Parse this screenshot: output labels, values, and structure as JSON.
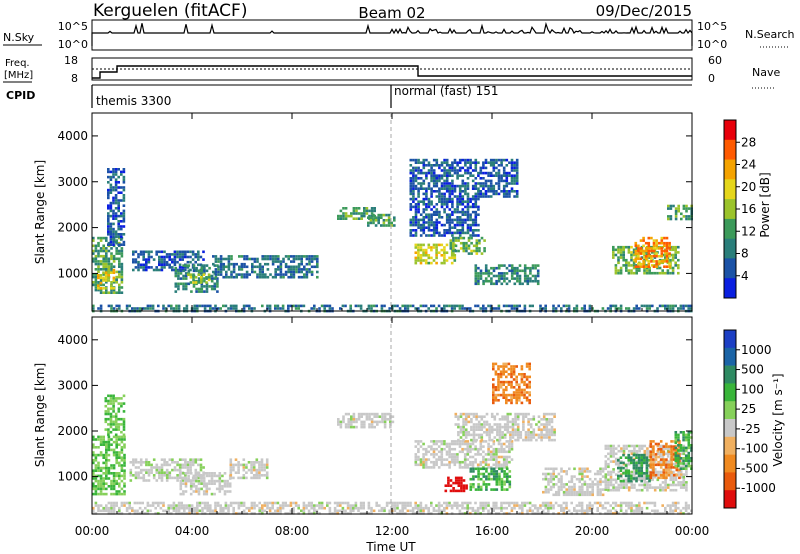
{
  "header": {
    "station": "Kerguelen (fitACF)",
    "beam": "Beam 02",
    "date": "09/Dec/2015"
  },
  "status_panels": {
    "nsky": {
      "label": "N.Sky",
      "ticks": [
        "10^5",
        "10^0"
      ]
    },
    "nsearch": {
      "label": "N.Search",
      "ticks": [
        "10^5",
        "10^0"
      ]
    },
    "freq": {
      "label_line1": "Freq.",
      "label_line2": "[MHz]",
      "ticks": [
        "18",
        "8"
      ]
    },
    "nave": {
      "label": "Nave",
      "ticks": [
        "60",
        "0"
      ]
    },
    "cpid": {
      "label": "CPID",
      "segments": [
        {
          "name": "themis 3300",
          "start_hour": 0,
          "end_hour": 12
        },
        {
          "name": "normal (fast) 151",
          "start_hour": 12,
          "end_hour": 24
        }
      ]
    }
  },
  "chart_data": [
    {
      "type": "heatmap",
      "panel": "power",
      "x": {
        "label": "",
        "range_hours": [
          0,
          24
        ],
        "tick_labels": [
          "00:00",
          "04:00",
          "08:00",
          "12:00",
          "16:00",
          "20:00",
          "00:00"
        ]
      },
      "y": {
        "label": "Slant Range [km]",
        "range_km": [
          180,
          4500
        ],
        "ticks": [
          1000,
          2000,
          3000,
          4000
        ]
      },
      "colorbar": {
        "label": "Power [dB]",
        "ticks": [
          "28",
          "24",
          "20",
          "16",
          "12",
          "8",
          "4"
        ],
        "colors": [
          "#e8000b",
          "#ff5a00",
          "#f5a300",
          "#e5d61b",
          "#9bc32b",
          "#3c9a5a",
          "#2a7e7a",
          "#1b52a6",
          "#0a1fe0"
        ]
      },
      "regions": [
        {
          "t0": 0.0,
          "t1": 1.2,
          "r0": 600,
          "r1": 1800,
          "level": 12
        },
        {
          "t0": 0.2,
          "t1": 0.9,
          "r0": 700,
          "r1": 1100,
          "level": 20
        },
        {
          "t0": 0.6,
          "t1": 1.3,
          "r0": 1600,
          "r1": 3300,
          "level": 6
        },
        {
          "t0": 1.6,
          "t1": 4.5,
          "r0": 1100,
          "r1": 1500,
          "level": 6
        },
        {
          "t0": 3.3,
          "t1": 5.0,
          "r0": 600,
          "r1": 1200,
          "level": 10
        },
        {
          "t0": 3.8,
          "t1": 4.7,
          "r0": 800,
          "r1": 1000,
          "level": 16
        },
        {
          "t0": 4.8,
          "t1": 9.0,
          "r0": 900,
          "r1": 1400,
          "level": 8
        },
        {
          "t0": 9.8,
          "t1": 11.3,
          "r0": 2200,
          "r1": 2450,
          "level": 12
        },
        {
          "t0": 11.0,
          "t1": 12.1,
          "r0": 2050,
          "r1": 2300,
          "level": 12
        },
        {
          "t0": 12.9,
          "t1": 14.5,
          "r0": 1200,
          "r1": 1650,
          "level": 18
        },
        {
          "t0": 14.3,
          "t1": 15.7,
          "r0": 1450,
          "r1": 1800,
          "level": 14
        },
        {
          "t0": 12.7,
          "t1": 15.5,
          "r0": 1800,
          "r1": 3500,
          "level": 6
        },
        {
          "t0": 15.3,
          "t1": 17.8,
          "r0": 800,
          "r1": 1200,
          "level": 10
        },
        {
          "t0": 15.5,
          "t1": 17.0,
          "r0": 2700,
          "r1": 3500,
          "level": 6
        },
        {
          "t0": 20.8,
          "t1": 23.5,
          "r0": 1000,
          "r1": 1600,
          "level": 14
        },
        {
          "t0": 21.7,
          "t1": 23.1,
          "r0": 1150,
          "r1": 1800,
          "level": 24
        },
        {
          "t0": 23.0,
          "t1": 24.0,
          "r0": 2200,
          "r1": 2500,
          "level": 12
        },
        {
          "t0": 0.0,
          "t1": 24.0,
          "r0": 200,
          "r1": 320,
          "level": 8
        }
      ]
    },
    {
      "type": "heatmap",
      "panel": "velocity",
      "x": {
        "label": "Time UT",
        "range_hours": [
          0,
          24
        ],
        "tick_labels": [
          "00:00",
          "04:00",
          "08:00",
          "12:00",
          "16:00",
          "20:00",
          "00:00"
        ]
      },
      "y": {
        "label": "Slant Range [km]",
        "range_km": [
          180,
          4500
        ],
        "ticks": [
          1000,
          2000,
          3000,
          4000
        ]
      },
      "colorbar": {
        "label": "Velocity [m s⁻¹]",
        "ticks": [
          "1000",
          "500",
          "100",
          "25",
          "-25",
          "-100",
          "-500",
          "-1000"
        ],
        "colors": [
          "#1c3fc4",
          "#1b64a6",
          "#2e8a62",
          "#39b53a",
          "#86d05a",
          "#c8c8c8",
          "#f0b060",
          "#f08a20",
          "#e95a0c",
          "#e00d0d"
        ]
      },
      "regions": [
        {
          "t0": 0.0,
          "t1": 1.3,
          "r0": 600,
          "r1": 1900,
          "v": 100
        },
        {
          "t0": 0.5,
          "t1": 1.3,
          "r0": 1900,
          "r1": 2800,
          "v": 100
        },
        {
          "t0": 1.5,
          "t1": 4.5,
          "r0": 900,
          "r1": 1400,
          "v": 10
        },
        {
          "t0": 3.5,
          "t1": 5.5,
          "r0": 600,
          "r1": 1100,
          "v": 0
        },
        {
          "t0": 5.5,
          "t1": 7.0,
          "r0": 1000,
          "r1": 1400,
          "v": 0
        },
        {
          "t0": 9.8,
          "t1": 12.0,
          "r0": 2100,
          "r1": 2400,
          "v": 0
        },
        {
          "t0": 12.9,
          "t1": 16.8,
          "r0": 1200,
          "r1": 1800,
          "v": 0
        },
        {
          "t0": 14.5,
          "t1": 18.5,
          "r0": 1800,
          "r1": 2400,
          "v": 0
        },
        {
          "t0": 14.1,
          "t1": 15.0,
          "r0": 700,
          "r1": 1000,
          "v": -700
        },
        {
          "t0": 15.1,
          "t1": 16.7,
          "r0": 700,
          "r1": 1200,
          "v": 200
        },
        {
          "t0": 16.0,
          "t1": 17.5,
          "r0": 2600,
          "r1": 3500,
          "v": -200
        },
        {
          "t0": 18.0,
          "t1": 20.5,
          "r0": 600,
          "r1": 1200,
          "v": 0
        },
        {
          "t0": 20.5,
          "t1": 23.8,
          "r0": 700,
          "r1": 1700,
          "v": 0
        },
        {
          "t0": 21.0,
          "t1": 22.3,
          "r0": 900,
          "r1": 1500,
          "v": 300
        },
        {
          "t0": 22.3,
          "t1": 23.5,
          "r0": 1000,
          "r1": 1800,
          "v": -200
        },
        {
          "t0": 23.3,
          "t1": 24.0,
          "r0": 1200,
          "r1": 2000,
          "v": 200
        },
        {
          "t0": 0.0,
          "t1": 24.0,
          "r0": 200,
          "r1": 450,
          "v": 0
        }
      ]
    }
  ]
}
